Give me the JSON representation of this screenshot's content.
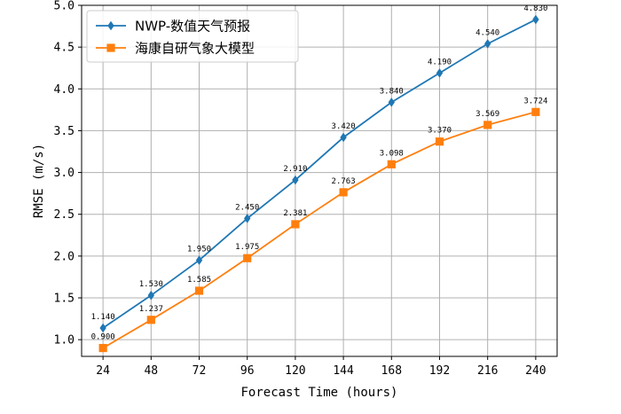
{
  "chart_data": {
    "type": "line",
    "title": "",
    "xlabel": "Forecast Time (hours)",
    "ylabel": "RMSE (m/s)",
    "x": [
      24,
      48,
      72,
      96,
      120,
      144,
      168,
      192,
      216,
      240
    ],
    "x_tick_labels": [
      "24",
      "48",
      "72",
      "96",
      "120",
      "144",
      "168",
      "192",
      "216",
      "240"
    ],
    "ylim": [
      0.8,
      5.0
    ],
    "y_ticks": [
      1.0,
      1.5,
      2.0,
      2.5,
      3.0,
      3.5,
      4.0,
      4.5,
      5.0
    ],
    "y_tick_labels": [
      "1.0",
      "1.5",
      "2.0",
      "2.5",
      "3.0",
      "3.5",
      "4.0",
      "4.5",
      "5.0"
    ],
    "grid": true,
    "legend_position": "top-left",
    "series": [
      {
        "name": "NWP-数值天气预报",
        "color": "#1f77b4",
        "marker": "diamond",
        "values": [
          1.14,
          1.53,
          1.95,
          2.45,
          2.91,
          3.42,
          3.84,
          4.19,
          4.54,
          4.83
        ],
        "labels": [
          "1.140",
          "1.530",
          "1.950",
          "2.450",
          "2.910",
          "3.420",
          "3.840",
          "4.190",
          "4.540",
          "4.830"
        ]
      },
      {
        "name": "海康自研气象大模型",
        "color": "#ff7f0e",
        "marker": "square",
        "values": [
          0.9,
          1.237,
          1.585,
          1.975,
          2.381,
          2.763,
          3.098,
          3.37,
          3.569,
          3.724
        ],
        "labels": [
          "0.900",
          "1.237",
          "1.585",
          "1.975",
          "2.381",
          "2.763",
          "3.098",
          "3.370",
          "3.569",
          "3.724"
        ]
      }
    ]
  }
}
